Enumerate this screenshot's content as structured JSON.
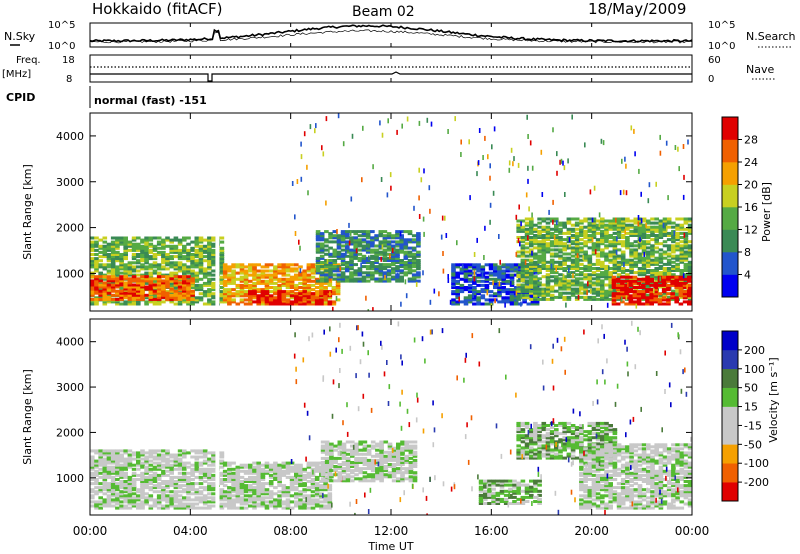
{
  "header": {
    "station": "Hokkaido (fitACF)",
    "beam": "Beam 02",
    "date": "18/May/2009"
  },
  "strip_labels": {
    "nsky": "N.Sky",
    "nsearch": "N.Search",
    "freq_top": "Freq.",
    "freq_units": "[MHz]",
    "nave": "Nave",
    "cpid": "CPID",
    "cpid_value": "normal (fast) -151"
  },
  "noise_panel": {
    "ticks_left": [
      "10^5",
      "10^0"
    ],
    "ticks_right": [
      "10^5",
      "10^0"
    ]
  },
  "freq_panel": {
    "ticks_left": [
      "18",
      "8"
    ],
    "ticks_right": [
      "60",
      "0"
    ]
  },
  "colors": {
    "power": [
      "#0000f0",
      "#2255cc",
      "#3a8a55",
      "#55aa44",
      "#c8d020",
      "#f5a000",
      "#f06000",
      "#e00000"
    ],
    "velocity": [
      "#0000c8",
      "#2a3ab0",
      "#4a7a3a",
      "#55bb33",
      "#c8c8c8",
      "#c8c8c8",
      "#f5a000",
      "#f06000",
      "#e00000"
    ],
    "ground_scatter": "#c0c0c0"
  },
  "chart_data": [
    {
      "type": "heatmap",
      "name": "Power",
      "ylabel": "Slant Range [km]",
      "yticks": [
        "1000",
        "2000",
        "3000",
        "4000"
      ],
      "ylim": [
        180,
        4500
      ],
      "xticks": [
        "00:00",
        "04:00",
        "08:00",
        "12:00",
        "16:00",
        "20:00",
        "00:00"
      ],
      "xlim_hours": [
        0,
        24
      ],
      "colorbar_label": "Power [dB]",
      "colorbar_ticks": [
        "4",
        "8",
        "12",
        "16",
        "20",
        "24",
        "28"
      ],
      "regions": [
        {
          "t0": 0.0,
          "t1": 5.2,
          "r0": 300,
          "r1": 1750,
          "level": 3
        },
        {
          "t0": 0.0,
          "t1": 4.0,
          "r0": 400,
          "r1": 900,
          "level": 6
        },
        {
          "t0": 5.3,
          "t1": 9.8,
          "r0": 300,
          "r1": 1200,
          "level": 5
        },
        {
          "t0": 6.3,
          "t1": 9.5,
          "r0": 300,
          "r1": 600,
          "level": 7
        },
        {
          "t0": 9.0,
          "t1": 13.0,
          "r0": 800,
          "r1": 1900,
          "level": 2
        },
        {
          "t0": 14.4,
          "t1": 17.8,
          "r0": 300,
          "r1": 1200,
          "level": 1
        },
        {
          "t0": 17.0,
          "t1": 24.0,
          "r0": 400,
          "r1": 2200,
          "level": 3
        },
        {
          "t0": 20.8,
          "t1": 24.0,
          "r0": 300,
          "r1": 900,
          "level": 7
        }
      ]
    },
    {
      "type": "heatmap",
      "name": "Velocity",
      "ylabel": "Slant Range [km]",
      "yticks": [
        "1000",
        "2000",
        "3000",
        "4000"
      ],
      "ylim": [
        180,
        4500
      ],
      "xticks": [
        "00:00",
        "04:00",
        "08:00",
        "12:00",
        "16:00",
        "20:00",
        "00:00"
      ],
      "xlim_hours": [
        0,
        24
      ],
      "xlabel": "Time UT",
      "colorbar_label": "Velocity [m s⁻¹]",
      "colorbar_ticks": [
        "200",
        "100",
        "50",
        "15",
        "-15",
        "-50",
        "-100",
        "-200"
      ],
      "regions": [
        {
          "t0": 0.0,
          "t1": 5.2,
          "r0": 300,
          "r1": 1600,
          "level": 4
        },
        {
          "t0": 5.3,
          "t1": 9.5,
          "r0": 300,
          "r1": 1300,
          "level": 4
        },
        {
          "t0": 9.2,
          "t1": 13.0,
          "r0": 900,
          "r1": 1800,
          "level": 4
        },
        {
          "t0": 15.5,
          "t1": 18.0,
          "r0": 400,
          "r1": 900,
          "level": 3
        },
        {
          "t0": 17.0,
          "t1": 21.0,
          "r0": 1400,
          "r1": 2200,
          "level": 3
        },
        {
          "t0": 19.5,
          "t1": 24.0,
          "r0": 300,
          "r1": 1700,
          "level": 4
        }
      ]
    }
  ]
}
